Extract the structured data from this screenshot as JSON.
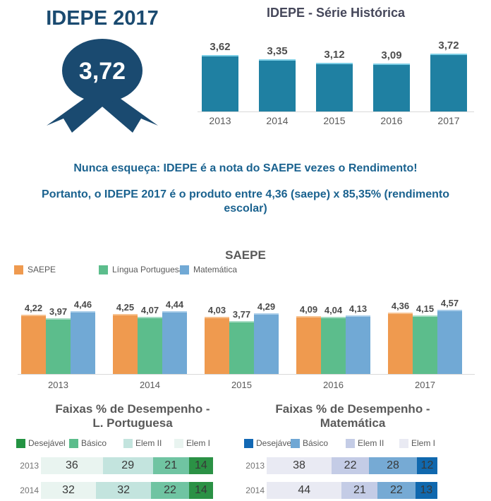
{
  "header": {
    "title": "IDEPE 2017",
    "badge_value": "3,72"
  },
  "notes": {
    "line1": "Nunca esqueça: IDEPE é a nota do SAEPE vezes o Rendimento!",
    "line2": "Portanto, o IDEPE 2017 é o produto entre 4,36 (saepe) x 85,35% (rendimento",
    "line3": "escolar)"
  },
  "colors": {
    "navy": "#1a4a70",
    "note_blue": "#1a628f",
    "teal_bar": "#1f80a2",
    "teal_bar_cap": "#7ecfe6",
    "orange": "#ef9a4f",
    "green": "#5cbd8c",
    "blue": "#71a9d5",
    "axis_line": "#d9d9d9",
    "text_gray": "#595959"
  },
  "chart_data": [
    {
      "id": "idepe_serie_historica",
      "type": "bar",
      "title": "IDEPE - Série Histórica",
      "categories": [
        "2013",
        "2014",
        "2015",
        "2016",
        "2017"
      ],
      "values": [
        3.62,
        3.35,
        3.12,
        3.09,
        3.72
      ],
      "value_labels": [
        "3,62",
        "3,35",
        "3,12",
        "3,09",
        "3,72"
      ],
      "bar_color": "#1f80a2",
      "bar_cap_color": "#7ecfe6",
      "ylim": [
        0,
        4
      ],
      "grid": false,
      "data_labels": "above",
      "legend_position": "none"
    },
    {
      "id": "saepe",
      "type": "bar",
      "title": "SAEPE",
      "categories": [
        "2013",
        "2014",
        "2015",
        "2016",
        "2017"
      ],
      "series": [
        {
          "name": "SAEPE",
          "color": "#ef9a4f",
          "cap_color": "#f7c392",
          "values": [
            4.22,
            4.25,
            4.03,
            4.09,
            4.36
          ],
          "value_labels": [
            "4,22",
            "4,25",
            "4,03",
            "4,09",
            "4,36"
          ]
        },
        {
          "name": "Língua Portuguesa",
          "color": "#5cbd8c",
          "cap_color": "#a6dcc3",
          "values": [
            3.97,
            4.07,
            3.77,
            4.04,
            4.15
          ],
          "value_labels": [
            "3,97",
            "4,07",
            "3,77",
            "4,04",
            "4,15"
          ]
        },
        {
          "name": "Matemática",
          "color": "#71a9d5",
          "cap_color": "#a9cde9",
          "values": [
            4.46,
            4.44,
            4.29,
            4.13,
            4.57
          ],
          "value_labels": [
            "4,46",
            "4,44",
            "4,29",
            "4,13",
            "4,57"
          ]
        }
      ],
      "ylim": [
        0,
        5
      ],
      "grid": false,
      "data_labels": "above",
      "legend_position": "top-left"
    },
    {
      "id": "faixas_lingua_portuguesa",
      "type": "bar",
      "stacked": true,
      "orientation": "horizontal",
      "title": "Faixas % de Desempenho - L. Portuguesa",
      "title_lines": [
        "Faixas % de Desempenho -",
        "L. Portuguesa"
      ],
      "legend": [
        {
          "label": "Desejável",
          "color": "#239342"
        },
        {
          "label": "Básico",
          "color": "#5cbd8c"
        },
        {
          "label": "Elem II",
          "color": "#c3e4de"
        },
        {
          "label": "Elem I",
          "color": "#e9f4f0"
        }
      ],
      "segment_order": [
        "Elem I",
        "Elem II",
        "Básico",
        "Desejável"
      ],
      "segment_colors": [
        "#e9f4f0",
        "#c3e4de",
        "#70c4a2",
        "#2b9145"
      ],
      "rows": [
        {
          "year": "2013",
          "values": [
            36,
            29,
            21,
            14
          ]
        },
        {
          "year": "2014",
          "values": [
            32,
            32,
            22,
            14
          ]
        }
      ],
      "xlim": [
        0,
        100
      ],
      "legend_position": "top"
    },
    {
      "id": "faixas_matematica",
      "type": "bar",
      "stacked": true,
      "orientation": "horizontal",
      "title": "Faixas % de Desempenho - Matemática",
      "title_lines": [
        "Faixas % de Desempenho -",
        "Matemática"
      ],
      "legend": [
        {
          "label": "Desejável",
          "color": "#1268b4"
        },
        {
          "label": "Básico",
          "color": "#6fa7d4"
        },
        {
          "label": "Elem II",
          "color": "#c4cce6"
        },
        {
          "label": "Elem I",
          "color": "#e9eaf3"
        }
      ],
      "segment_order": [
        "Elem I",
        "Elem II",
        "Básico",
        "Desejável"
      ],
      "segment_colors": [
        "#e9eaf3",
        "#c4cce6",
        "#76aad4",
        "#1068ae"
      ],
      "rows": [
        {
          "year": "2013",
          "values": [
            38,
            22,
            28,
            12
          ]
        },
        {
          "year": "2014",
          "values": [
            44,
            21,
            22,
            13
          ]
        }
      ],
      "xlim": [
        0,
        100
      ],
      "legend_position": "top"
    }
  ]
}
